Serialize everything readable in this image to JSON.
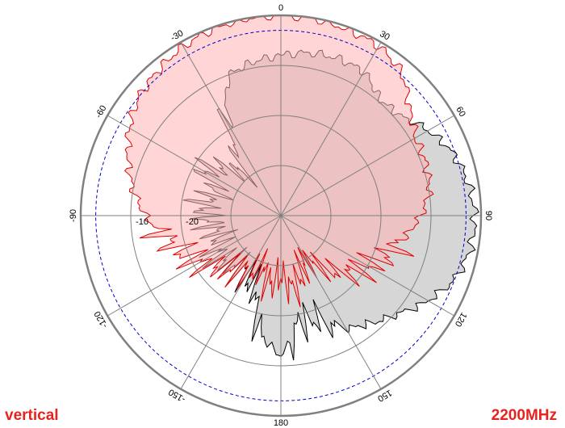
{
  "labels": {
    "left": "vertical",
    "right": "2200MHz"
  },
  "colors": {
    "outer_ring": "#808080",
    "grid": "#808080",
    "red_line": "#e00000",
    "red_fill": "#ffb3b3",
    "black_line": "#000000",
    "gray_fill": "#b4b4b4",
    "dashed_ring": "#0000cc",
    "label_text": "#e8231e"
  },
  "chart_data": {
    "type": "polar",
    "title": "",
    "angle_ticks": [
      {
        "angle": 0,
        "label": "0"
      },
      {
        "angle": 30,
        "label": "30"
      },
      {
        "angle": 60,
        "label": "60"
      },
      {
        "angle": 90,
        "label": "90"
      },
      {
        "angle": 120,
        "label": "120"
      },
      {
        "angle": 150,
        "label": "150"
      },
      {
        "angle": 180,
        "label": "180"
      },
      {
        "angle": -150,
        "label": "-150"
      },
      {
        "angle": -120,
        "label": "-120"
      },
      {
        "angle": -90,
        "label": "-90"
      },
      {
        "angle": -60,
        "label": "-60"
      },
      {
        "angle": -30,
        "label": "-30"
      }
    ],
    "radial_unit": "dB",
    "radial_range": [
      -40,
      0
    ],
    "radial_ticks": [
      {
        "value": -10,
        "label": "-10"
      },
      {
        "value": -20,
        "label": "-20"
      }
    ],
    "grid_rings": [
      -10,
      -20,
      -30
    ],
    "dashed_ring": -3,
    "series": [
      {
        "color": "#e00000",
        "fill": true,
        "points": [
          [
            0,
            0
          ],
          [
            10,
            -0.2
          ],
          [
            20,
            -0.6
          ],
          [
            30,
            -0.9
          ],
          [
            40,
            -2.5
          ],
          [
            50,
            -6.5
          ],
          [
            60,
            -9
          ],
          [
            70,
            -9.2
          ],
          [
            80,
            -9.8
          ],
          [
            90,
            -12
          ],
          [
            100,
            -15
          ],
          [
            110,
            -17
          ],
          [
            120,
            -20
          ],
          [
            130,
            -22
          ],
          [
            140,
            -26
          ],
          [
            150,
            -30
          ],
          [
            160,
            -28
          ],
          [
            170,
            -25
          ],
          [
            180,
            -28
          ],
          [
            190,
            -26
          ],
          [
            200,
            -29
          ],
          [
            210,
            -27
          ],
          [
            220,
            -26
          ],
          [
            230,
            -24
          ],
          [
            240,
            -21
          ],
          [
            250,
            -19
          ],
          [
            260,
            -16
          ],
          [
            270,
            -13
          ],
          [
            280,
            -10
          ],
          [
            290,
            -7.5
          ],
          [
            300,
            -5
          ],
          [
            310,
            -3
          ],
          [
            320,
            -2
          ],
          [
            330,
            -1
          ],
          [
            340,
            -0.4
          ],
          [
            350,
            -0.1
          ]
        ]
      },
      {
        "color": "#000000",
        "fill": true,
        "points": [
          [
            0,
            -8
          ],
          [
            10,
            -7
          ],
          [
            20,
            -6.6
          ],
          [
            30,
            -6.8
          ],
          [
            40,
            -9.5
          ],
          [
            50,
            -9
          ],
          [
            60,
            -6
          ],
          [
            70,
            -3.4
          ],
          [
            80,
            -2
          ],
          [
            90,
            -1.2
          ],
          [
            100,
            -1.5
          ],
          [
            110,
            -3
          ],
          [
            120,
            -6
          ],
          [
            130,
            -9.5
          ],
          [
            140,
            -12
          ],
          [
            150,
            -14
          ],
          [
            160,
            -18
          ],
          [
            170,
            -18.5
          ],
          [
            180,
            -12
          ],
          [
            190,
            -16
          ],
          [
            200,
            -25
          ],
          [
            210,
            -26
          ],
          [
            220,
            -27
          ],
          [
            230,
            -26
          ],
          [
            240,
            -25
          ],
          [
            250,
            -27
          ],
          [
            260,
            -26
          ],
          [
            270,
            -25
          ],
          [
            280,
            -24
          ],
          [
            290,
            -27
          ],
          [
            300,
            -22
          ],
          [
            310,
            -25
          ],
          [
            320,
            -29
          ],
          [
            330,
            -18
          ],
          [
            340,
            -10
          ],
          [
            350,
            -8.8
          ]
        ]
      }
    ]
  }
}
